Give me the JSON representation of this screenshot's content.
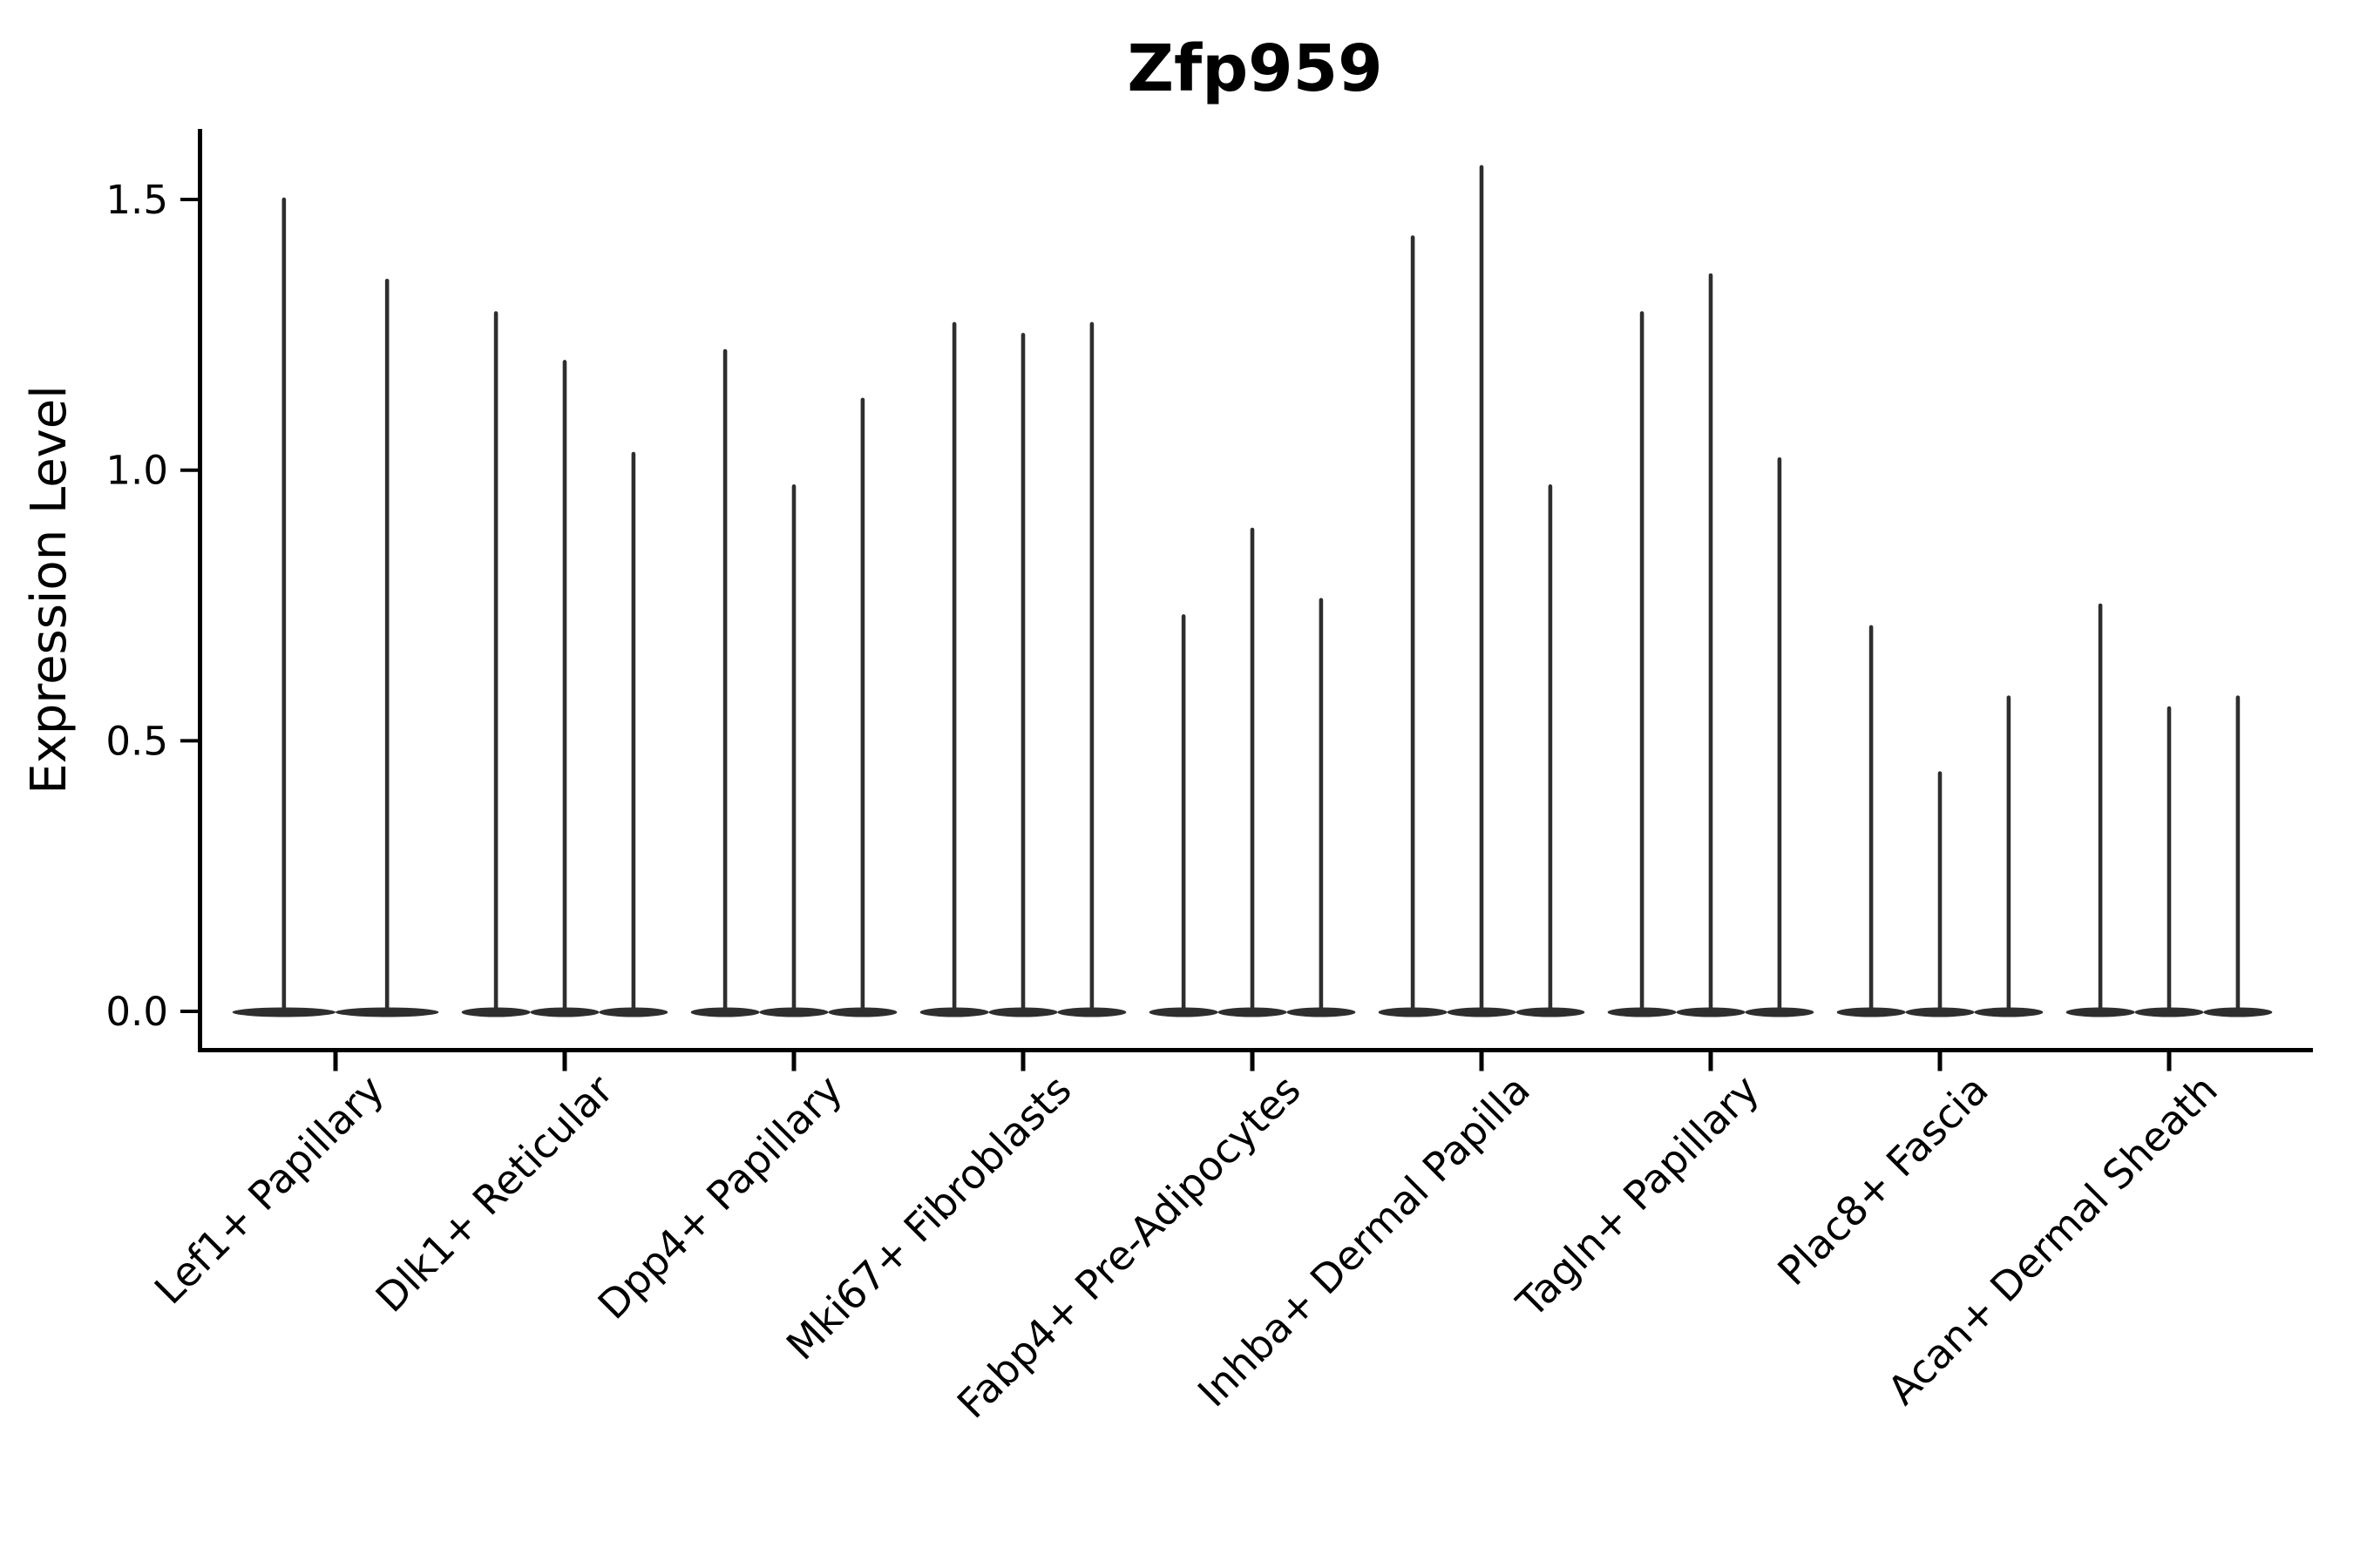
{
  "figure": {
    "background_color": "#ffffff",
    "violin_color": "#2e2e2e",
    "axis_color": "#000000",
    "text_color": "#000000"
  },
  "chart_data": {
    "type": "violin",
    "title": "Zfp959",
    "xlabel": "",
    "ylabel": "Expression Level",
    "grid": false,
    "legend_position": "none",
    "ylim": [
      -0.08,
      1.63
    ],
    "ytick_labels": [
      "0.0",
      "0.5",
      "1.0",
      "1.5"
    ],
    "ytick_values": [
      0.0,
      0.5,
      1.0,
      1.5
    ],
    "xtick_rotation_deg": 45,
    "categories": [
      "Lef1+ Papillary",
      "Dlk1+ Reticular",
      "Dpp4+ Papillary",
      "Mki67+ Fibroblasts",
      "Fabp4+ Pre-Adipocytes",
      "Inhba+ Dermal Papilla",
      "Tagln+ Papillary",
      "Plac8+ Fascia",
      "Acan+ Dermal Sheath"
    ],
    "groups": [
      {
        "category": "Lef1+ Papillary",
        "violin_max_expression": [
          1.5,
          1.35
        ]
      },
      {
        "category": "Dlk1+ Reticular",
        "violin_max_expression": [
          1.29,
          1.2,
          1.03
        ]
      },
      {
        "category": "Dpp4+ Papillary",
        "violin_max_expression": [
          1.22,
          0.97,
          1.13
        ]
      },
      {
        "category": "Mki67+ Fibroblasts",
        "violin_max_expression": [
          1.27,
          1.25,
          1.27
        ]
      },
      {
        "category": "Fabp4+ Pre-Adipocytes",
        "violin_max_expression": [
          0.73,
          0.89,
          0.76
        ]
      },
      {
        "category": "Inhba+ Dermal Papilla",
        "violin_max_expression": [
          1.43,
          1.56,
          0.97
        ]
      },
      {
        "category": "Tagln+ Papillary",
        "violin_max_expression": [
          1.29,
          1.36,
          1.02
        ]
      },
      {
        "category": "Plac8+ Fascia",
        "violin_max_expression": [
          0.71,
          0.44,
          0.58
        ]
      },
      {
        "category": "Acan+ Dermal Sheath",
        "violin_max_expression": [
          0.75,
          0.56,
          0.58
        ]
      }
    ]
  }
}
